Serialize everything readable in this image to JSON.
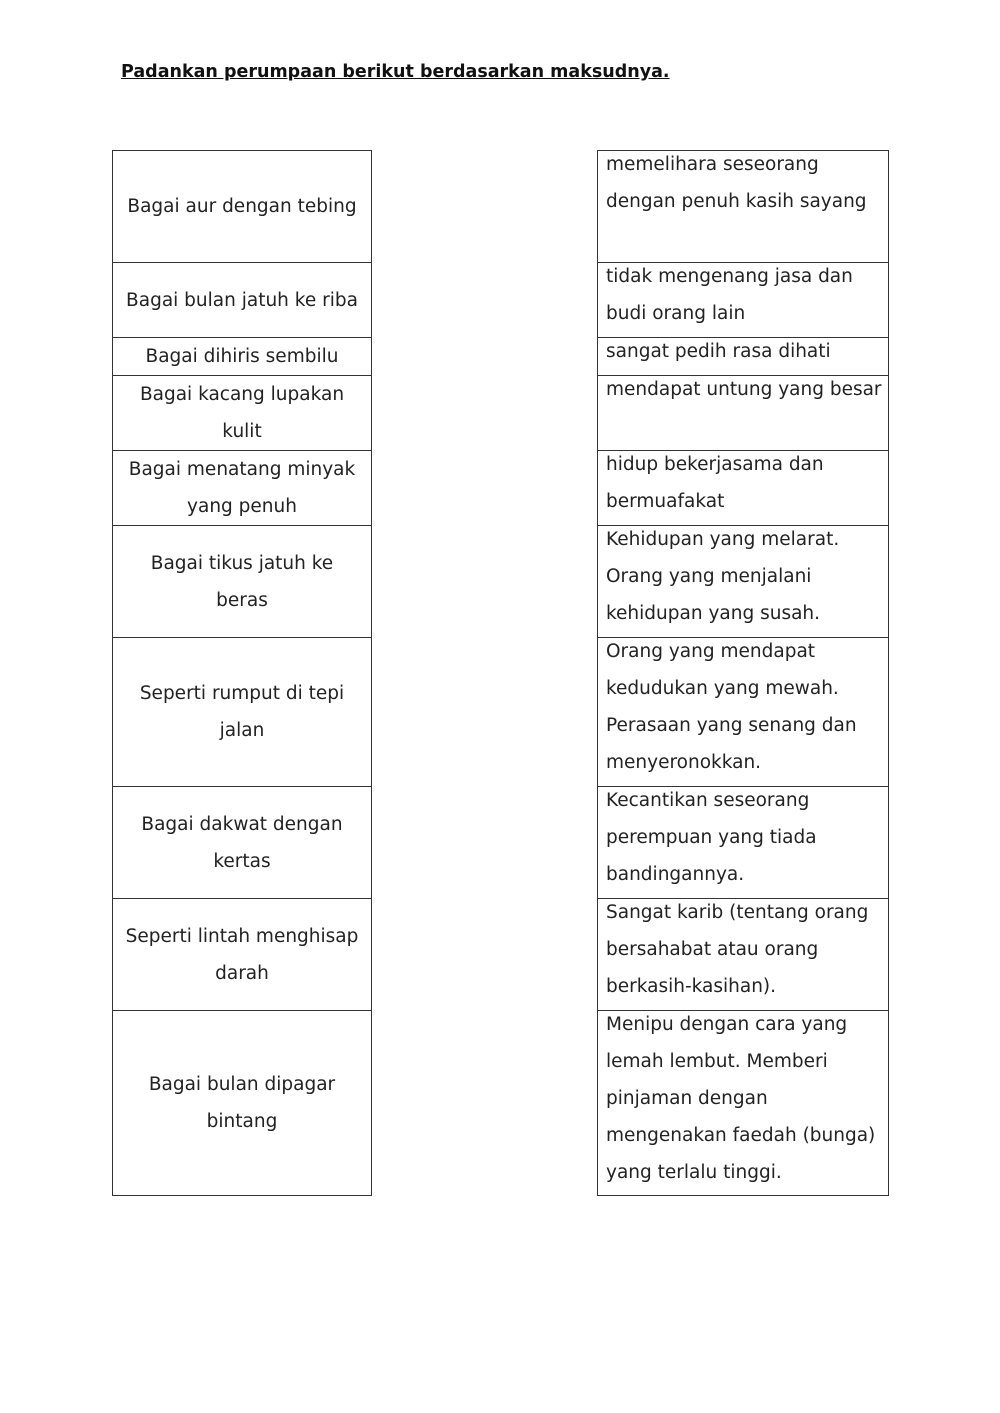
{
  "title": "Padankan perumpaan berikut berdasarkan maksudnya.",
  "left_items": [
    "Bagai aur dengan tebing",
    "Bagai bulan jatuh ke riba",
    "Bagai dihiris sembilu",
    "Bagai kacang lupakan kulit",
    "Bagai menatang minyak yang penuh",
    "Bagai tikus jatuh ke beras",
    "Seperti rumput di tepi jalan",
    "Bagai dakwat dengan kertas",
    "Seperti lintah menghisap darah",
    "Bagai bulan dipagar bintang"
  ],
  "right_items": [
    "memelihara seseorang dengan penuh kasih sayang",
    "tidak mengenang jasa dan budi orang lain",
    "sangat pedih rasa dihati",
    "mendapat untung yang besar",
    "hidup bekerjasama dan bermuafakat",
    "Kehidupan yang melarat. Orang yang menjalani kehidupan yang susah.",
    "Orang yang mendapat kedudukan yang mewah. Perasaan yang senang dan menyeronokkan.",
    "Kecantikan seseorang perempuan yang tiada bandingannya.",
    "Sangat karib (tentang orang bersahabat atau orang berkasih-kasihan).",
    "Menipu dengan cara yang lemah lembut. Memberi pinjaman dengan mengenakan faedah (bunga) yang terlalu tinggi."
  ]
}
